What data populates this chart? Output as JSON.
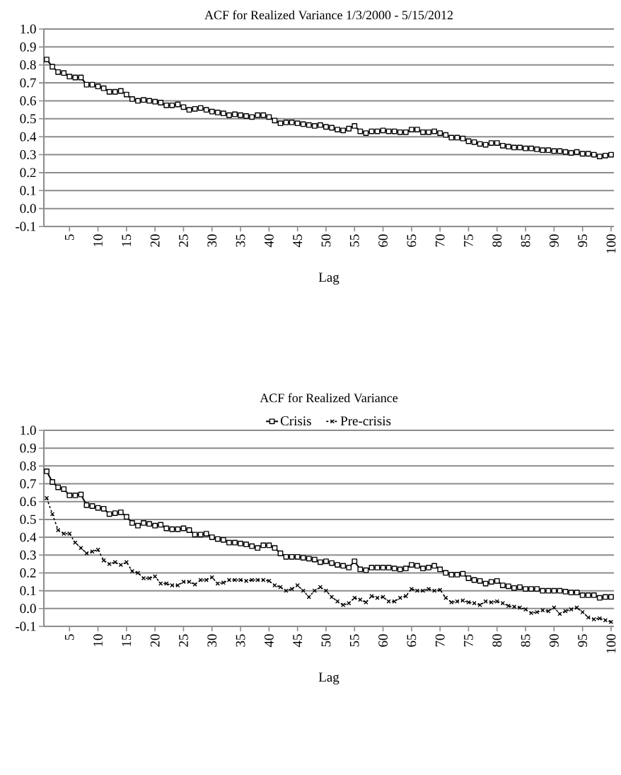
{
  "chart_data": [
    {
      "type": "line",
      "title": "ACF for Realized Variance 1/3/2000 - 5/15/2012",
      "xlabel": "Lag",
      "categories": [
        null,
        null,
        null,
        null,
        "5",
        null,
        null,
        null,
        null,
        "10",
        null,
        null,
        null,
        null,
        "15",
        null,
        null,
        null,
        null,
        "20",
        null,
        null,
        null,
        null,
        "25",
        null,
        null,
        null,
        null,
        "30",
        null,
        null,
        null,
        null,
        "35",
        null,
        null,
        null,
        null,
        "40",
        null,
        null,
        null,
        null,
        "45",
        null,
        null,
        null,
        null,
        "50",
        null,
        null,
        null,
        null,
        "55",
        null,
        null,
        null,
        null,
        "60",
        null,
        null,
        null,
        null,
        "65",
        null,
        null,
        null,
        null,
        "70",
        null,
        null,
        null,
        null,
        "75",
        null,
        null,
        null,
        null,
        "80",
        null,
        null,
        null,
        null,
        "85",
        null,
        null,
        null,
        null,
        "90",
        null,
        null,
        null,
        null,
        "95",
        null,
        null,
        null,
        null,
        "100"
      ],
      "series": [
        {
          "color": "#000000",
          "marker": "square",
          "line_style": "solid",
          "values": [
            0.83,
            0.79,
            0.76,
            0.755,
            0.735,
            0.73,
            0.73,
            0.69,
            0.69,
            0.68,
            0.67,
            0.65,
            0.65,
            0.655,
            0.635,
            0.61,
            0.6,
            0.605,
            0.6,
            0.595,
            0.59,
            0.575,
            0.575,
            0.58,
            0.565,
            0.55,
            0.555,
            0.56,
            0.55,
            0.54,
            0.535,
            0.53,
            0.52,
            0.525,
            0.52,
            0.515,
            0.51,
            0.52,
            0.52,
            0.51,
            0.49,
            0.475,
            0.48,
            0.48,
            0.475,
            0.47,
            0.465,
            0.46,
            0.465,
            0.455,
            0.45,
            0.44,
            0.435,
            0.445,
            0.46,
            0.43,
            0.42,
            0.43,
            0.43,
            0.435,
            0.43,
            0.43,
            0.425,
            0.425,
            0.44,
            0.44,
            0.425,
            0.425,
            0.43,
            0.42,
            0.41,
            0.395,
            0.395,
            0.39,
            0.375,
            0.37,
            0.36,
            0.355,
            0.365,
            0.365,
            0.35,
            0.345,
            0.34,
            0.34,
            0.335,
            0.335,
            0.33,
            0.325,
            0.325,
            0.32,
            0.32,
            0.315,
            0.31,
            0.315,
            0.305,
            0.305,
            0.3,
            0.29,
            0.295,
            0.3
          ]
        }
      ],
      "ylim": [
        -0.1,
        1.0
      ],
      "yticks": [
        {
          "value": -0.1,
          "label": "-0.1"
        },
        {
          "value": 0.0,
          "label": "0.0"
        },
        {
          "value": 0.1,
          "label": "0.1"
        },
        {
          "value": 0.2,
          "label": "0.2"
        },
        {
          "value": 0.3,
          "label": "0.3"
        },
        {
          "value": 0.4,
          "label": "0.4"
        },
        {
          "value": 0.5,
          "label": "0.5"
        },
        {
          "value": 0.6,
          "label": "0.6"
        },
        {
          "value": 0.7,
          "label": "0.7"
        },
        {
          "value": 0.8,
          "label": "0.8"
        },
        {
          "value": 0.9,
          "label": "0.9"
        },
        {
          "value": 1.0,
          "label": "1.0"
        }
      ],
      "grid": "y",
      "legend": false
    },
    {
      "type": "line",
      "title": "ACF for Realized Variance",
      "xlabel": "Lag",
      "categories": [
        null,
        null,
        null,
        null,
        "5",
        null,
        null,
        null,
        null,
        "10",
        null,
        null,
        null,
        null,
        "15",
        null,
        null,
        null,
        null,
        "20",
        null,
        null,
        null,
        null,
        "25",
        null,
        null,
        null,
        null,
        "30",
        null,
        null,
        null,
        null,
        "35",
        null,
        null,
        null,
        null,
        "40",
        null,
        null,
        null,
        null,
        "45",
        null,
        null,
        null,
        null,
        "50",
        null,
        null,
        null,
        null,
        "55",
        null,
        null,
        null,
        null,
        "60",
        null,
        null,
        null,
        null,
        "65",
        null,
        null,
        null,
        null,
        "70",
        null,
        null,
        null,
        null,
        "75",
        null,
        null,
        null,
        null,
        "80",
        null,
        null,
        null,
        null,
        "85",
        null,
        null,
        null,
        null,
        "90",
        null,
        null,
        null,
        null,
        "95",
        null,
        null,
        null,
        null,
        "100"
      ],
      "series": [
        {
          "name": "Crisis",
          "color": "#000000",
          "marker": "square",
          "line_style": "solid",
          "values": [
            0.77,
            0.71,
            0.68,
            0.67,
            0.635,
            0.635,
            0.64,
            0.58,
            0.575,
            0.565,
            0.56,
            0.53,
            0.535,
            0.54,
            0.515,
            0.48,
            0.465,
            0.48,
            0.475,
            0.465,
            0.47,
            0.45,
            0.445,
            0.445,
            0.45,
            0.44,
            0.415,
            0.415,
            0.42,
            0.4,
            0.39,
            0.385,
            0.37,
            0.37,
            0.365,
            0.36,
            0.35,
            0.34,
            0.355,
            0.355,
            0.34,
            0.31,
            0.29,
            0.29,
            0.29,
            0.285,
            0.28,
            0.275,
            0.26,
            0.265,
            0.255,
            0.245,
            0.24,
            0.23,
            0.265,
            0.22,
            0.215,
            0.23,
            0.23,
            0.23,
            0.23,
            0.225,
            0.22,
            0.225,
            0.245,
            0.24,
            0.225,
            0.23,
            0.24,
            0.22,
            0.2,
            0.19,
            0.19,
            0.195,
            0.17,
            0.16,
            0.155,
            0.14,
            0.15,
            0.155,
            0.13,
            0.125,
            0.115,
            0.12,
            0.11,
            0.11,
            0.11,
            0.1,
            0.1,
            0.1,
            0.1,
            0.095,
            0.09,
            0.09,
            0.075,
            0.075,
            0.075,
            0.06,
            0.065,
            0.065
          ]
        },
        {
          "name": "Pre-crisis",
          "color": "#000000",
          "marker": "cross",
          "line_style": "dashed",
          "values": [
            0.62,
            0.53,
            0.44,
            0.42,
            0.42,
            0.37,
            0.34,
            0.31,
            0.32,
            0.33,
            0.27,
            0.25,
            0.26,
            0.245,
            0.26,
            0.21,
            0.2,
            0.17,
            0.17,
            0.18,
            0.14,
            0.14,
            0.13,
            0.13,
            0.15,
            0.15,
            0.135,
            0.16,
            0.16,
            0.175,
            0.14,
            0.145,
            0.16,
            0.16,
            0.16,
            0.155,
            0.16,
            0.16,
            0.16,
            0.155,
            0.13,
            0.12,
            0.1,
            0.11,
            0.13,
            0.1,
            0.065,
            0.1,
            0.12,
            0.1,
            0.065,
            0.04,
            0.02,
            0.03,
            0.06,
            0.05,
            0.035,
            0.07,
            0.06,
            0.065,
            0.04,
            0.04,
            0.06,
            0.07,
            0.11,
            0.1,
            0.1,
            0.11,
            0.1,
            0.105,
            0.06,
            0.035,
            0.04,
            0.045,
            0.035,
            0.03,
            0.02,
            0.04,
            0.035,
            0.04,
            0.03,
            0.015,
            0.01,
            0.005,
            -0.005,
            -0.025,
            -0.02,
            -0.01,
            -0.015,
            0.005,
            -0.03,
            -0.015,
            -0.005,
            0.005,
            -0.02,
            -0.05,
            -0.06,
            -0.055,
            -0.065,
            -0.075
          ]
        }
      ],
      "ylim": [
        -0.1,
        1.0
      ],
      "yticks": [
        {
          "value": -0.1,
          "label": "-0.1"
        },
        {
          "value": 0.0,
          "label": "0.0"
        },
        {
          "value": 0.1,
          "label": "0.1"
        },
        {
          "value": 0.2,
          "label": "0.2"
        },
        {
          "value": 0.3,
          "label": "0.3"
        },
        {
          "value": 0.4,
          "label": "0.4"
        },
        {
          "value": 0.5,
          "label": "0.5"
        },
        {
          "value": 0.6,
          "label": "0.6"
        },
        {
          "value": 0.7,
          "label": "0.7"
        },
        {
          "value": 0.8,
          "label": "0.8"
        },
        {
          "value": 0.9,
          "label": "0.9"
        },
        {
          "value": 1.0,
          "label": "1.0"
        }
      ],
      "grid": "y",
      "legend": "top"
    }
  ]
}
